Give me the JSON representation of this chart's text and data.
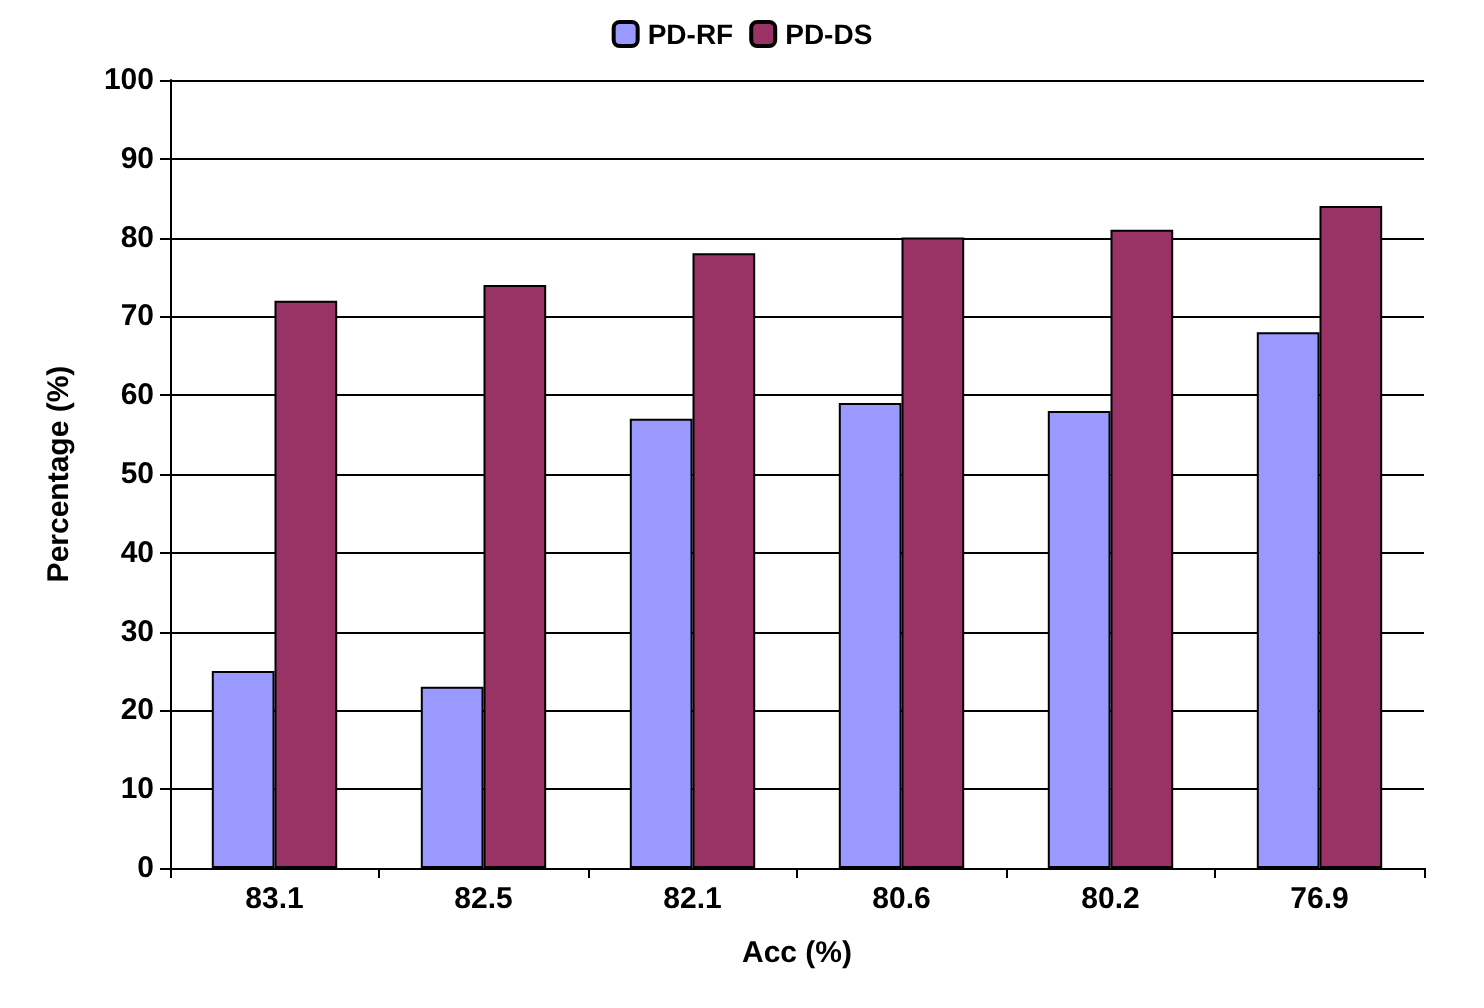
{
  "chart_data": {
    "type": "bar",
    "xlabel": "Acc (%)",
    "ylabel": "Percentage (%)",
    "categories": [
      "83.1",
      "82.5",
      "82.1",
      "80.6",
      "80.2",
      "76.9"
    ],
    "series": [
      {
        "name": "PD-RF",
        "color": "#9999ff",
        "values": [
          25,
          23,
          57,
          59,
          58,
          68
        ]
      },
      {
        "name": "PD-DS",
        "color": "#993366",
        "values": [
          72,
          74,
          78,
          80,
          81,
          84
        ]
      }
    ],
    "ylim": [
      0,
      100
    ],
    "yticks": [
      0,
      10,
      20,
      30,
      40,
      50,
      60,
      70,
      80,
      90,
      100
    ],
    "grid": "y",
    "legend": "top"
  }
}
